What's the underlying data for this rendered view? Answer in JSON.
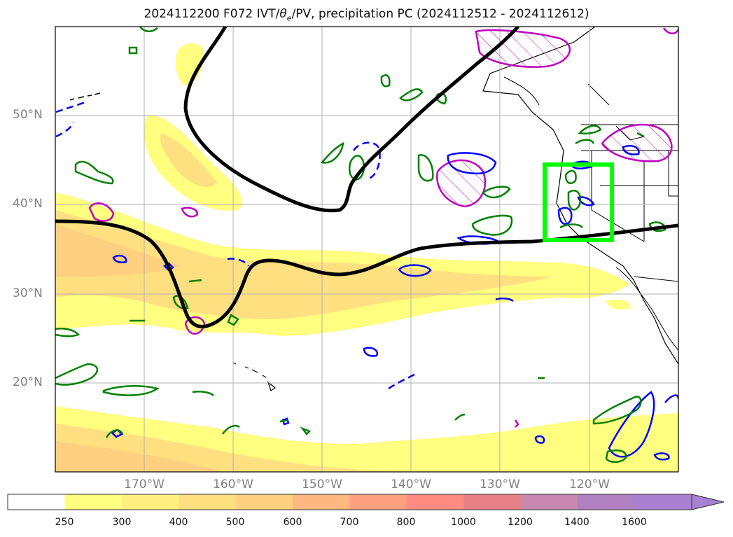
{
  "title": "2024112200 F072 IVT/θe/PV, precipitation PC (2024112512 - 2024112612)",
  "title_parts": {
    "prefix": "2024112200 F072 IVT/",
    "theta": "θ",
    "sub": "e",
    "suffix": "/PV, precipitation PC (2024112512 - 2024112612)"
  },
  "map": {
    "extent_lon": [
      -180,
      -110
    ],
    "extent_lat": [
      10,
      60
    ],
    "lat_labels": [
      {
        "lat": 50,
        "text": "50°N"
      },
      {
        "lat": 40,
        "text": "40°N"
      },
      {
        "lat": 30,
        "text": "30°N"
      },
      {
        "lat": 20,
        "text": "20°N"
      }
    ],
    "lon_labels": [
      {
        "lon": -170,
        "text": "170°W"
      },
      {
        "lon": -160,
        "text": "160°W"
      },
      {
        "lon": -150,
        "text": "150°W"
      },
      {
        "lon": -140,
        "text": "140°W"
      },
      {
        "lon": -130,
        "text": "130°W"
      },
      {
        "lon": -120,
        "text": "120°W"
      }
    ],
    "highlight_box": {
      "lon": [
        -125,
        -117.2
      ],
      "lat": [
        36.0,
        44.5
      ],
      "color": "#00ff00"
    },
    "colors": {
      "pv_contour": "#000000",
      "theta_e_contour": "#008000",
      "precip_blue": "#0000ff",
      "precip_magenta": "#c000c0"
    }
  },
  "colorbar": {
    "ticks": [
      "250",
      "300",
      "400",
      "500",
      "600",
      "700",
      "800",
      "1000",
      "1200",
      "1400",
      "1600"
    ],
    "colors": [
      "#ffffff",
      "#ffff80",
      "#fff080",
      "#ffe080",
      "#ffd080",
      "#ffb880",
      "#ffa080",
      "#ff8c80",
      "#e88088",
      "#c888b0",
      "#b080c0",
      "#a880d0"
    ]
  }
}
